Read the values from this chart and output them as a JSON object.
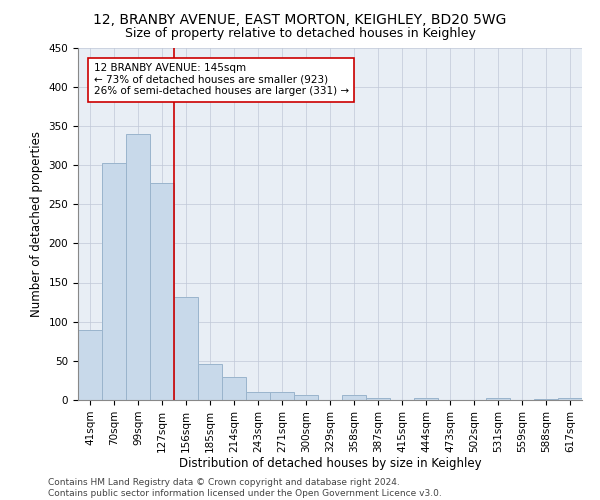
{
  "title1": "12, BRANBY AVENUE, EAST MORTON, KEIGHLEY, BD20 5WG",
  "title2": "Size of property relative to detached houses in Keighley",
  "xlabel": "Distribution of detached houses by size in Keighley",
  "ylabel": "Number of detached properties",
  "bar_color": "#c8d9ea",
  "bar_edge_color": "#9ab4cc",
  "grid_color": "#cccccc",
  "background_color": "#ffffff",
  "categories": [
    "41sqm",
    "70sqm",
    "99sqm",
    "127sqm",
    "156sqm",
    "185sqm",
    "214sqm",
    "243sqm",
    "271sqm",
    "300sqm",
    "329sqm",
    "358sqm",
    "387sqm",
    "415sqm",
    "444sqm",
    "473sqm",
    "502sqm",
    "531sqm",
    "559sqm",
    "588sqm",
    "617sqm"
  ],
  "values": [
    90,
    302,
    340,
    277,
    131,
    46,
    30,
    10,
    10,
    7,
    0,
    7,
    3,
    0,
    3,
    0,
    0,
    2,
    0,
    1,
    2
  ],
  "vline_color": "#cc0000",
  "annotation_text": "12 BRANBY AVENUE: 145sqm\n← 73% of detached houses are smaller (923)\n26% of semi-detached houses are larger (331) →",
  "annotation_box_color": "#ffffff",
  "annotation_border_color": "#cc0000",
  "ylim": [
    0,
    450
  ],
  "yticks": [
    0,
    50,
    100,
    150,
    200,
    250,
    300,
    350,
    400,
    450
  ],
  "footer": "Contains HM Land Registry data © Crown copyright and database right 2024.\nContains public sector information licensed under the Open Government Licence v3.0.",
  "title1_fontsize": 10,
  "title2_fontsize": 9,
  "xlabel_fontsize": 8.5,
  "ylabel_fontsize": 8.5,
  "tick_fontsize": 7.5,
  "annotation_fontsize": 7.5,
  "footer_fontsize": 6.5
}
